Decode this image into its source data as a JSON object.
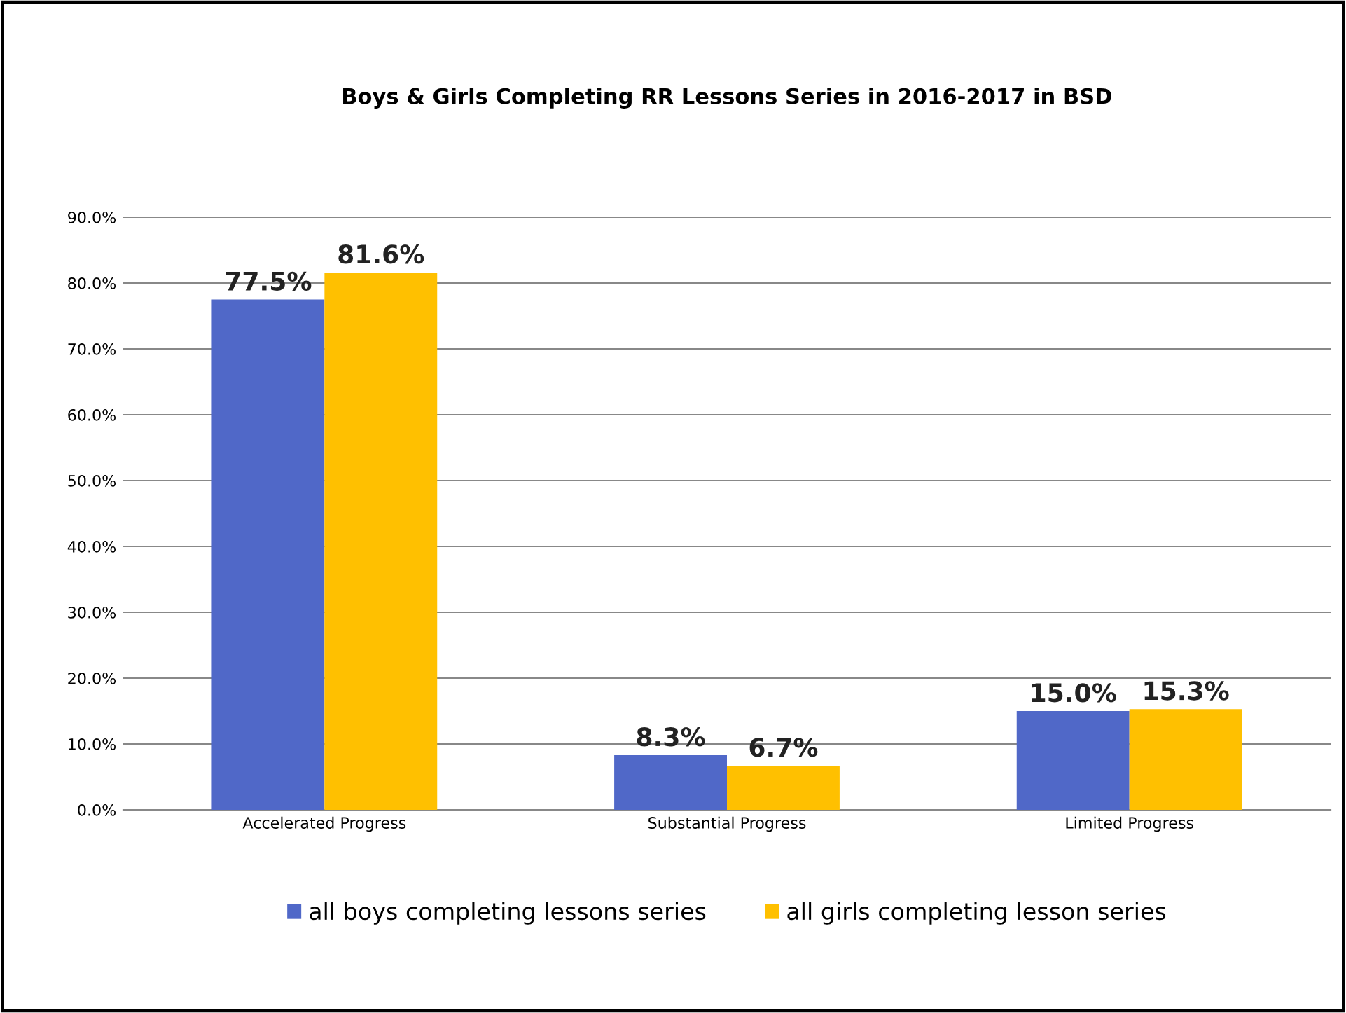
{
  "chart_data": {
    "type": "bar",
    "title": "Boys & Girls Completing RR Lessons Series in 2016-2017 in BSD",
    "categories": [
      "Accelerated Progress",
      "Substantial Progress",
      "Limited Progress"
    ],
    "series": [
      {
        "name": "all boys completing lessons series",
        "color": "#5068c8",
        "values": [
          77.5,
          8.3,
          15.0
        ],
        "value_labels": [
          "77.5%",
          "8.3%",
          "15.0%"
        ]
      },
      {
        "name": "all girls completing lesson series",
        "color": "#ffc000",
        "values": [
          81.6,
          6.7,
          15.3
        ],
        "value_labels": [
          "81.6%",
          "6.7%",
          "15.3%"
        ]
      }
    ],
    "ylim": [
      0,
      90
    ],
    "yticks": [
      {
        "value": 0,
        "label": "0.0%"
      },
      {
        "value": 10,
        "label": "10.0%"
      },
      {
        "value": 20,
        "label": "20.0%"
      },
      {
        "value": 30,
        "label": "30.0%"
      },
      {
        "value": 40,
        "label": "40.0%"
      },
      {
        "value": 50,
        "label": "50.0%"
      },
      {
        "value": 60,
        "label": "60.0%"
      },
      {
        "value": 70,
        "label": "70.0%"
      },
      {
        "value": 80,
        "label": "80.0%"
      },
      {
        "value": 90,
        "label": "90.0%"
      }
    ],
    "grid": "y",
    "legend": "bottom"
  }
}
